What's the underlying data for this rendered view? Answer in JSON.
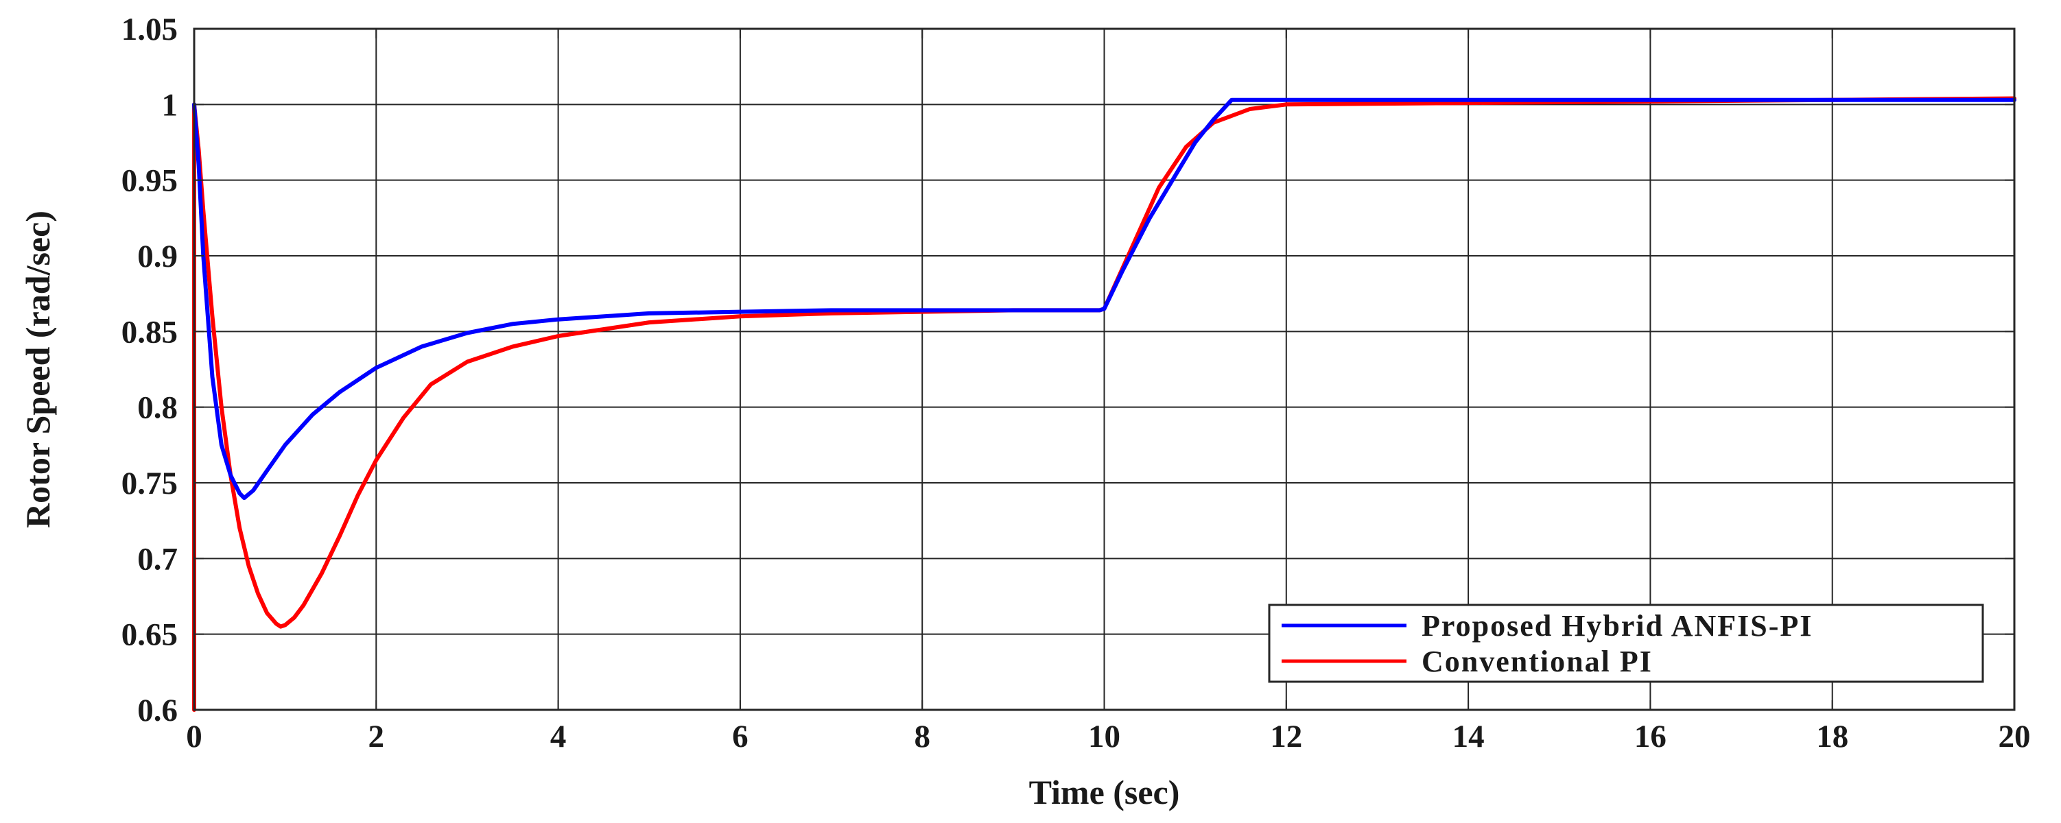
{
  "chart_data": {
    "type": "line",
    "xlabel": "Time (sec)",
    "ylabel": "Rotor Speed (rad/sec)",
    "xlim": [
      0,
      20
    ],
    "ylim": [
      0.6,
      1.05
    ],
    "xticks": [
      0,
      2,
      4,
      6,
      8,
      10,
      12,
      14,
      16,
      18,
      20
    ],
    "yticks": [
      0.6,
      0.65,
      0.7,
      0.75,
      0.8,
      0.85,
      0.9,
      0.95,
      1,
      1.05
    ],
    "ytick_labels": [
      "0.6",
      "0.65",
      "0.7",
      "0.75",
      "0.8",
      "0.85",
      "0.9",
      "0.95",
      "1",
      "1.05"
    ],
    "grid": true,
    "legend_position": "bottom-right",
    "series": [
      {
        "name": "Proposed Hybrid ANFIS-PI",
        "color": "#0000ff",
        "x": [
          0,
          0.05,
          0.1,
          0.2,
          0.3,
          0.4,
          0.5,
          0.55,
          0.65,
          0.8,
          1.0,
          1.3,
          1.6,
          2.0,
          2.5,
          3.0,
          3.5,
          4.0,
          5.0,
          6.0,
          7.0,
          8.0,
          9.0,
          9.95,
          10.0,
          10.2,
          10.5,
          10.8,
          11.0,
          11.2,
          11.4,
          12.0,
          14.0,
          16.0,
          18.0,
          20.0
        ],
        "y": [
          1.0,
          0.96,
          0.9,
          0.82,
          0.775,
          0.755,
          0.743,
          0.74,
          0.745,
          0.758,
          0.775,
          0.795,
          0.81,
          0.826,
          0.84,
          0.849,
          0.855,
          0.858,
          0.862,
          0.863,
          0.864,
          0.864,
          0.864,
          0.864,
          0.865,
          0.89,
          0.925,
          0.955,
          0.975,
          0.99,
          1.003,
          1.003,
          1.003,
          1.003,
          1.003,
          1.003
        ]
      },
      {
        "name": "Conventional PI",
        "color": "#ff0000",
        "x": [
          0,
          0.0,
          0.05,
          0.1,
          0.2,
          0.3,
          0.4,
          0.5,
          0.6,
          0.7,
          0.8,
          0.9,
          0.95,
          1.0,
          1.1,
          1.2,
          1.4,
          1.6,
          1.8,
          2.0,
          2.3,
          2.6,
          3.0,
          3.5,
          4.0,
          5.0,
          6.0,
          7.0,
          8.0,
          9.0,
          9.95,
          10.0,
          10.3,
          10.6,
          10.9,
          11.2,
          11.6,
          12.0,
          14.0,
          16.0,
          18.0,
          20.0
        ],
        "y": [
          0.6,
          1.0,
          0.97,
          0.93,
          0.86,
          0.8,
          0.755,
          0.72,
          0.695,
          0.677,
          0.664,
          0.657,
          0.655,
          0.656,
          0.661,
          0.669,
          0.69,
          0.715,
          0.742,
          0.765,
          0.793,
          0.815,
          0.83,
          0.84,
          0.847,
          0.856,
          0.86,
          0.862,
          0.863,
          0.864,
          0.864,
          0.865,
          0.905,
          0.945,
          0.972,
          0.988,
          0.997,
          1.0,
          1.001,
          1.002,
          1.003,
          1.004
        ]
      }
    ]
  }
}
